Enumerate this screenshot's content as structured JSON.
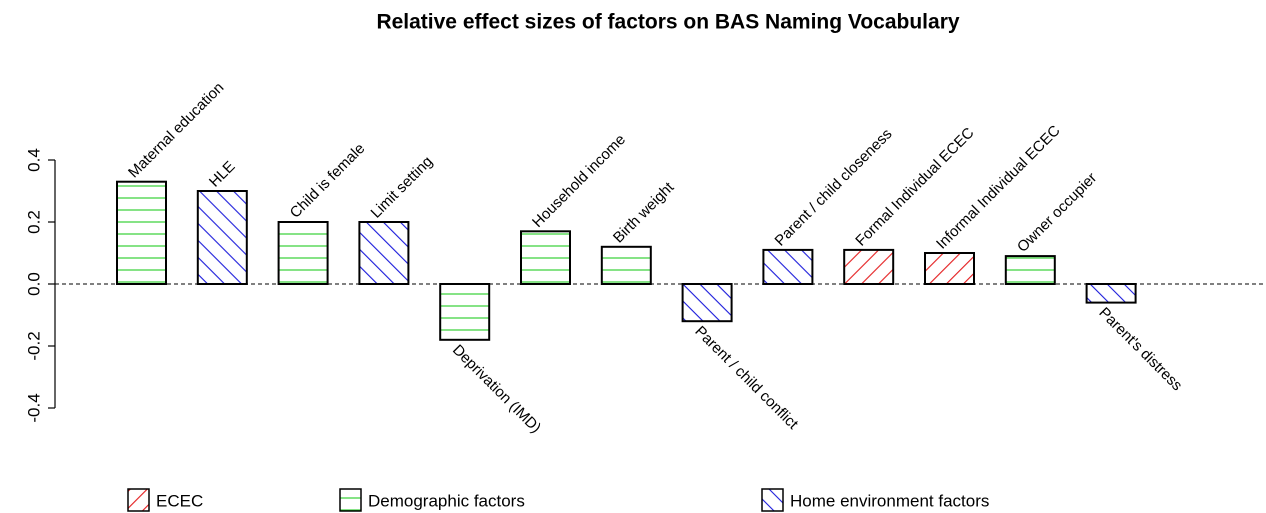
{
  "chart_data": {
    "type": "bar",
    "title": "Relative effect sizes of factors on  BAS Naming Vocabulary",
    "categories": [
      "Maternal education",
      "HLE",
      "Child is female",
      "Limit setting",
      "Deprivation (IMD)",
      "Household income",
      "Birth weight",
      "Parent / child conflict",
      "Parent / child closeness",
      "Formal Individual ECEC",
      "Informal Individual ECEC",
      "Owner occupier",
      "Parent's distress"
    ],
    "values": [
      0.33,
      0.3,
      0.2,
      0.2,
      -0.18,
      0.17,
      0.12,
      -0.12,
      0.11,
      0.11,
      0.1,
      0.09,
      -0.06
    ],
    "bar_groups": [
      "Demographic factors",
      "Home environment factors",
      "Demographic factors",
      "Home environment factors",
      "Demographic factors",
      "Demographic factors",
      "Demographic factors",
      "Home environment factors",
      "Home environment factors",
      "ECEC",
      "ECEC",
      "Demographic factors",
      "Home environment factors"
    ],
    "legend": [
      {
        "name": "ECEC",
        "color": "#e41a1c",
        "hatch": "diagonal-up"
      },
      {
        "name": "Demographic factors",
        "color": "#22cc22",
        "hatch": "horizontal"
      },
      {
        "name": "Home environment factors",
        "color": "#1a1adb",
        "hatch": "diagonal-down"
      }
    ],
    "ylim": [
      -0.4,
      0.4
    ],
    "yticks": [
      {
        "value": -0.4,
        "label": "-0.4"
      },
      {
        "value": -0.2,
        "label": "-0.2"
      },
      {
        "value": 0,
        "label": "0.0"
      },
      {
        "value": 0.2,
        "label": "0.2"
      },
      {
        "value": 0.4,
        "label": "0.4"
      }
    ],
    "zero_line": "dashed"
  }
}
